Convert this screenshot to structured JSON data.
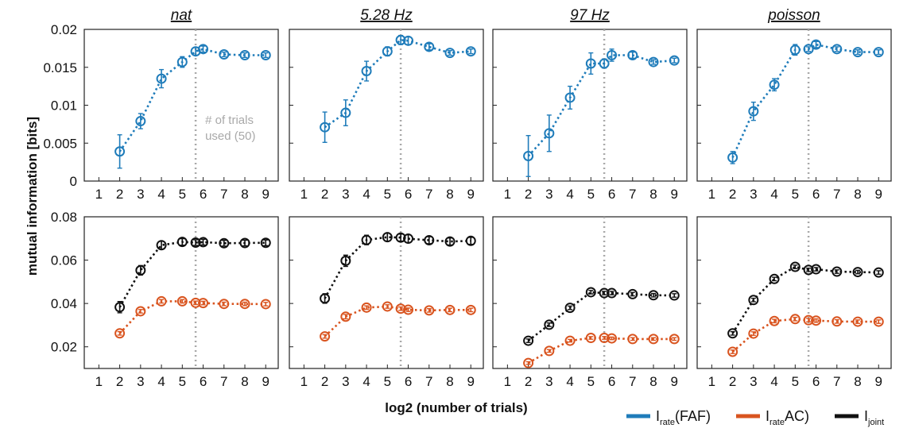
{
  "chart_data": {
    "type": "line",
    "xlabel": "log2 (number of trials)",
    "ylabel": "mutual information [bits]",
    "x_ticks": [
      1,
      2,
      3,
      4,
      5,
      6,
      7,
      8,
      9
    ],
    "xlim": [
      0.3,
      9.6
    ],
    "marker_line_x": 5.64,
    "annotation": [
      "# of trials",
      "used (50)"
    ],
    "panel_titles": [
      "nat",
      "5.28 Hz",
      "97 Hz",
      "poisson"
    ],
    "rows": [
      {
        "ylim": [
          0,
          0.02
        ],
        "y_ticks": [
          "0",
          "0.005",
          "0.01",
          "0.015",
          "0.02"
        ],
        "y_tick_values": [
          0,
          0.005,
          0.01,
          0.015,
          0.02
        ]
      },
      {
        "ylim": [
          0.01,
          0.08
        ],
        "y_ticks": [
          "0.02",
          "0.04",
          "0.06",
          "0.08"
        ],
        "y_tick_values": [
          0.02,
          0.04,
          0.06,
          0.08
        ]
      }
    ],
    "x": [
      2,
      3,
      4,
      5,
      5.64,
      6,
      7,
      8,
      9
    ],
    "panels": [
      {
        "row": 0,
        "col": 0,
        "series": [
          {
            "key": "faf",
            "values": [
              0.0039,
              0.0079,
              0.0135,
              0.0157,
              0.0171,
              0.0174,
              0.0167,
              0.0166,
              0.0166
            ],
            "errors": [
              0.0022,
              0.001,
              0.0012,
              0.0007,
              0.0005,
              0.0004,
              0.0003,
              0.0003,
              0.0003
            ]
          }
        ]
      },
      {
        "row": 0,
        "col": 1,
        "series": [
          {
            "key": "faf",
            "values": [
              0.0071,
              0.009,
              0.0145,
              0.0171,
              0.0186,
              0.0185,
              0.0177,
              0.0169,
              0.0171
            ],
            "errors": [
              0.002,
              0.0017,
              0.0013,
              0.0006,
              0.0006,
              0.0005,
              0.0004,
              0.0003,
              0.0003
            ]
          }
        ]
      },
      {
        "row": 0,
        "col": 2,
        "series": [
          {
            "key": "faf",
            "values": [
              0.0033,
              0.0063,
              0.011,
              0.0155,
              0.0155,
              0.0166,
              0.0166,
              0.0157,
              0.0159
            ],
            "errors": [
              0.0027,
              0.0024,
              0.0015,
              0.0014,
              0.0006,
              0.0008,
              0.0004,
              0.0003,
              0.0003
            ]
          }
        ]
      },
      {
        "row": 0,
        "col": 3,
        "series": [
          {
            "key": "faf",
            "values": [
              0.0031,
              0.0092,
              0.0127,
              0.0173,
              0.0174,
              0.018,
              0.0174,
              0.017,
              0.017
            ],
            "errors": [
              0.0008,
              0.0012,
              0.0008,
              0.0007,
              0.0003,
              0.0004,
              0.0003,
              0.0003,
              0.0003
            ]
          }
        ]
      },
      {
        "row": 1,
        "col": 0,
        "series": [
          {
            "key": "joint",
            "values": [
              0.0383,
              0.0553,
              0.0669,
              0.0684,
              0.0681,
              0.0683,
              0.0678,
              0.0679,
              0.068
            ],
            "errors": [
              0.0026,
              0.0022,
              0.0018,
              0.0015,
              0.0013,
              0.0013,
              0.0013,
              0.0013,
              0.0013
            ]
          },
          {
            "key": "ac",
            "values": [
              0.0262,
              0.0364,
              0.041,
              0.041,
              0.0403,
              0.0402,
              0.0398,
              0.0398,
              0.0397
            ],
            "errors": [
              0.0008,
              0.0008,
              0.0008,
              0.0008,
              0.0008,
              0.0008,
              0.0008,
              0.0008,
              0.0008
            ]
          }
        ]
      },
      {
        "row": 1,
        "col": 1,
        "series": [
          {
            "key": "joint",
            "values": [
              0.0423,
              0.0597,
              0.0693,
              0.0706,
              0.0704,
              0.0699,
              0.0692,
              0.0686,
              0.0689
            ],
            "errors": [
              0.0022,
              0.0026,
              0.0022,
              0.0018,
              0.0016,
              0.0018,
              0.0016,
              0.0016,
              0.0016
            ]
          },
          {
            "key": "ac",
            "values": [
              0.0248,
              0.0339,
              0.0381,
              0.0386,
              0.0376,
              0.0371,
              0.0368,
              0.037,
              0.037
            ],
            "errors": [
              0.0008,
              0.001,
              0.0008,
              0.0008,
              0.0008,
              0.0008,
              0.0008,
              0.0008,
              0.0008
            ]
          }
        ]
      },
      {
        "row": 1,
        "col": 2,
        "series": [
          {
            "key": "joint",
            "values": [
              0.0228,
              0.0302,
              0.038,
              0.0452,
              0.0448,
              0.0448,
              0.0443,
              0.0438,
              0.0437
            ],
            "errors": [
              0.0008,
              0.0008,
              0.0008,
              0.0008,
              0.0008,
              0.0008,
              0.0008,
              0.0008,
              0.0008
            ]
          },
          {
            "key": "ac",
            "values": [
              0.0125,
              0.0181,
              0.0228,
              0.0241,
              0.0241,
              0.0239,
              0.0236,
              0.0236,
              0.0236
            ],
            "errors": [
              0.0006,
              0.0006,
              0.0006,
              0.0006,
              0.0006,
              0.0006,
              0.0006,
              0.0006,
              0.0006
            ]
          }
        ]
      },
      {
        "row": 1,
        "col": 3,
        "series": [
          {
            "key": "joint",
            "values": [
              0.0262,
              0.0416,
              0.0513,
              0.0569,
              0.0555,
              0.0558,
              0.0547,
              0.0545,
              0.0543
            ],
            "errors": [
              0.0008,
              0.0008,
              0.0008,
              0.0008,
              0.0008,
              0.0008,
              0.0008,
              0.0008,
              0.0008
            ]
          },
          {
            "key": "ac",
            "values": [
              0.0177,
              0.0261,
              0.0319,
              0.0328,
              0.0323,
              0.0321,
              0.0317,
              0.0316,
              0.0316
            ],
            "errors": [
              0.0008,
              0.0008,
              0.0008,
              0.0008,
              0.0008,
              0.0008,
              0.0008,
              0.0008,
              0.0008
            ]
          }
        ]
      }
    ],
    "series_styles": {
      "faf": {
        "color": "#1f7cba"
      },
      "ac": {
        "color": "#d9541f"
      },
      "joint": {
        "color": "#111111"
      }
    },
    "legend": {
      "placement": "bottom-right",
      "items": [
        {
          "key": "faf",
          "label_main": "I",
          "label_sub": "rate",
          "label_rest": "(FAF)"
        },
        {
          "key": "ac",
          "label_main": "I",
          "label_sub": "rate",
          "label_rest": "AC)"
        },
        {
          "key": "joint",
          "label_main": "I",
          "label_sub": "joint",
          "label_rest": ""
        }
      ]
    }
  }
}
